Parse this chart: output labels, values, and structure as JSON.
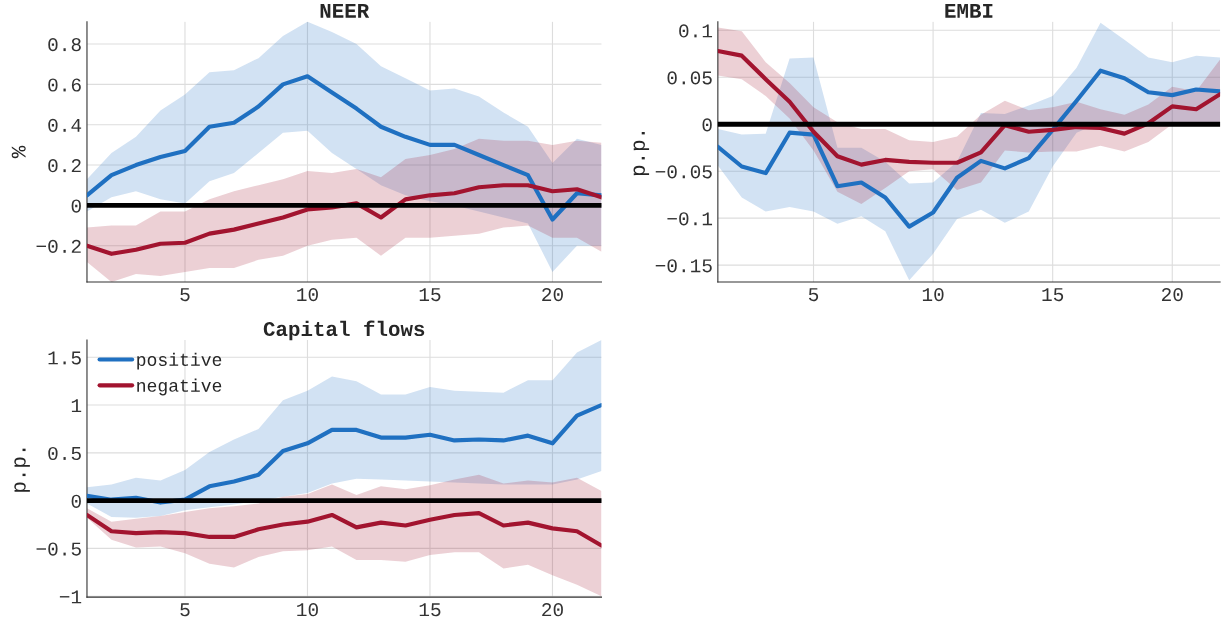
{
  "chart_data": [
    {
      "type": "line",
      "title": "NEER",
      "ylabel": "%",
      "x": [
        1,
        2,
        3,
        4,
        5,
        6,
        7,
        8,
        9,
        10,
        11,
        12,
        13,
        14,
        15,
        16,
        17,
        18,
        19,
        20,
        21,
        22
      ],
      "xlim": [
        1,
        22
      ],
      "xticks": [
        5,
        10,
        15,
        20
      ],
      "ylim": [
        -0.38,
        0.91
      ],
      "yticks": [
        -0.2,
        0,
        0.2,
        0.4,
        0.6,
        0.8
      ],
      "grid": true,
      "ref_lines": [
        {
          "axis": "y",
          "value": 0,
          "color": "#000000"
        }
      ],
      "series": [
        {
          "color": "#1f70c1",
          "values": [
            0.05,
            0.15,
            0.2,
            0.24,
            0.27,
            0.39,
            0.41,
            0.49,
            0.6,
            0.64,
            0.56,
            0.48,
            0.39,
            0.34,
            0.3,
            0.3,
            0.25,
            0.2,
            0.15,
            -0.07,
            0.06,
            0.05
          ],
          "upper": [
            0.13,
            0.26,
            0.34,
            0.47,
            0.55,
            0.66,
            0.67,
            0.73,
            0.84,
            0.91,
            0.86,
            0.8,
            0.69,
            0.63,
            0.57,
            0.58,
            0.54,
            0.46,
            0.39,
            0.21,
            0.33,
            0.3
          ],
          "lower": [
            -0.03,
            0.04,
            0.07,
            0.03,
            0.01,
            0.12,
            0.16,
            0.26,
            0.36,
            0.37,
            0.26,
            0.18,
            0.1,
            0.05,
            0.02,
            0.0,
            -0.03,
            -0.06,
            -0.09,
            -0.33,
            -0.2,
            -0.2
          ]
        },
        {
          "color": "#a2142f",
          "values": [
            -0.2,
            -0.24,
            -0.22,
            -0.19,
            -0.185,
            -0.14,
            -0.12,
            -0.09,
            -0.06,
            -0.02,
            -0.01,
            0.01,
            -0.06,
            0.03,
            0.05,
            0.06,
            0.09,
            0.1,
            0.1,
            0.07,
            0.08,
            0.04
          ],
          "upper": [
            -0.11,
            -0.1,
            -0.1,
            -0.03,
            -0.03,
            0.03,
            0.07,
            0.1,
            0.13,
            0.17,
            0.16,
            0.18,
            0.14,
            0.23,
            0.25,
            0.28,
            0.33,
            0.32,
            0.32,
            0.3,
            0.32,
            0.31
          ],
          "lower": [
            -0.28,
            -0.38,
            -0.34,
            -0.35,
            -0.33,
            -0.31,
            -0.31,
            -0.27,
            -0.25,
            -0.2,
            -0.17,
            -0.16,
            -0.25,
            -0.16,
            -0.16,
            -0.15,
            -0.14,
            -0.11,
            -0.1,
            -0.16,
            -0.16,
            -0.23
          ]
        }
      ]
    },
    {
      "type": "line",
      "title": "EMBI",
      "ylabel": "p.p.",
      "x": [
        1,
        2,
        3,
        4,
        5,
        6,
        7,
        8,
        9,
        10,
        11,
        12,
        13,
        14,
        15,
        16,
        17,
        18,
        19,
        20,
        21,
        22
      ],
      "xlim": [
        1,
        22
      ],
      "xticks": [
        5,
        10,
        15,
        20
      ],
      "ylim": [
        -0.168,
        0.109
      ],
      "yticks": [
        -0.15,
        -0.1,
        -0.05,
        0,
        0.05,
        0.1
      ],
      "grid": true,
      "ref_lines": [
        {
          "axis": "y",
          "value": 0,
          "color": "#000000"
        }
      ],
      "series": [
        {
          "color": "#1f70c1",
          "values": [
            -0.024,
            -0.045,
            -0.052,
            -0.009,
            -0.011,
            -0.066,
            -0.062,
            -0.078,
            -0.109,
            -0.094,
            -0.057,
            -0.039,
            -0.047,
            -0.036,
            -0.006,
            0.025,
            0.057,
            0.049,
            0.034,
            0.031,
            0.037,
            0.035
          ],
          "upper": [
            -0.005,
            -0.011,
            -0.01,
            0.07,
            0.071,
            -0.025,
            -0.025,
            -0.04,
            -0.063,
            -0.062,
            -0.04,
            0.012,
            0.011,
            0.02,
            0.03,
            0.06,
            0.108,
            0.09,
            0.071,
            0.066,
            0.073,
            0.071
          ],
          "lower": [
            -0.044,
            -0.078,
            -0.093,
            -0.088,
            -0.093,
            -0.106,
            -0.098,
            -0.114,
            -0.166,
            -0.138,
            -0.101,
            -0.091,
            -0.105,
            -0.093,
            -0.045,
            -0.009,
            0.002,
            0.0,
            0.0,
            0.0,
            0.0,
            0.0
          ]
        },
        {
          "color": "#a2142f",
          "values": [
            0.078,
            0.073,
            0.048,
            0.024,
            -0.008,
            -0.034,
            -0.043,
            -0.038,
            -0.04,
            -0.041,
            -0.041,
            -0.03,
            -0.001,
            -0.008,
            -0.006,
            -0.003,
            -0.004,
            -0.01,
            0.001,
            0.019,
            0.016,
            0.032
          ],
          "upper": [
            0.103,
            0.099,
            0.066,
            0.044,
            0.018,
            0.002,
            -0.005,
            -0.005,
            -0.017,
            -0.019,
            -0.013,
            0.01,
            0.025,
            0.015,
            0.018,
            0.024,
            0.016,
            0.01,
            0.021,
            0.04,
            0.035,
            0.069
          ],
          "lower": [
            0.052,
            0.048,
            0.03,
            0.006,
            -0.028,
            -0.072,
            -0.085,
            -0.068,
            -0.05,
            -0.048,
            -0.07,
            -0.062,
            -0.028,
            -0.03,
            -0.029,
            -0.029,
            -0.023,
            -0.029,
            -0.019,
            0.0,
            -0.001,
            -0.001
          ]
        }
      ]
    },
    {
      "type": "line",
      "title": "Capital flows",
      "ylabel": "p.p.",
      "x": [
        1,
        2,
        3,
        4,
        5,
        6,
        7,
        8,
        9,
        10,
        11,
        12,
        13,
        14,
        15,
        16,
        17,
        18,
        19,
        20,
        21,
        22
      ],
      "xlim": [
        1,
        22
      ],
      "xticks": [
        5,
        10,
        15,
        20
      ],
      "ylim": [
        -1.01,
        1.68
      ],
      "yticks": [
        -1,
        -0.5,
        0,
        0.5,
        1,
        1.5
      ],
      "grid": true,
      "legend": "top left",
      "ref_lines": [
        {
          "axis": "y",
          "value": 0,
          "color": "#000000"
        }
      ],
      "series": [
        {
          "name": "positive",
          "color": "#1f70c1",
          "values": [
            0.05,
            0.01,
            0.03,
            -0.02,
            0.01,
            0.15,
            0.2,
            0.27,
            0.52,
            0.6,
            0.74,
            0.74,
            0.66,
            0.66,
            0.69,
            0.63,
            0.64,
            0.63,
            0.68,
            0.6,
            0.89,
            1.0
          ],
          "upper": [
            0.14,
            0.17,
            0.24,
            0.21,
            0.32,
            0.51,
            0.64,
            0.75,
            1.05,
            1.15,
            1.3,
            1.25,
            1.11,
            1.11,
            1.19,
            1.15,
            1.14,
            1.13,
            1.26,
            1.26,
            1.55,
            1.68
          ],
          "lower": [
            -0.03,
            -0.17,
            -0.18,
            -0.16,
            -0.1,
            -0.07,
            -0.04,
            0.0,
            0.04,
            0.08,
            0.18,
            0.23,
            0.22,
            0.21,
            0.2,
            0.19,
            0.18,
            0.17,
            0.17,
            0.17,
            0.22,
            0.31
          ]
        },
        {
          "name": "negative",
          "color": "#a2142f",
          "values": [
            -0.15,
            -0.32,
            -0.34,
            -0.33,
            -0.34,
            -0.38,
            -0.38,
            -0.3,
            -0.25,
            -0.22,
            -0.15,
            -0.28,
            -0.23,
            -0.26,
            -0.2,
            -0.15,
            -0.13,
            -0.26,
            -0.23,
            -0.29,
            -0.32,
            -0.47
          ],
          "upper": [
            -0.08,
            -0.22,
            -0.19,
            -0.16,
            -0.12,
            -0.08,
            -0.06,
            -0.03,
            0.04,
            0.07,
            0.17,
            0.06,
            0.15,
            0.12,
            0.16,
            0.22,
            0.27,
            0.18,
            0.21,
            0.19,
            0.24,
            0.1
          ],
          "lower": [
            -0.18,
            -0.41,
            -0.49,
            -0.48,
            -0.55,
            -0.66,
            -0.7,
            -0.59,
            -0.53,
            -0.52,
            -0.48,
            -0.62,
            -0.62,
            -0.64,
            -0.57,
            -0.54,
            -0.54,
            -0.71,
            -0.67,
            -0.78,
            -0.88,
            -1.0
          ]
        }
      ]
    }
  ]
}
